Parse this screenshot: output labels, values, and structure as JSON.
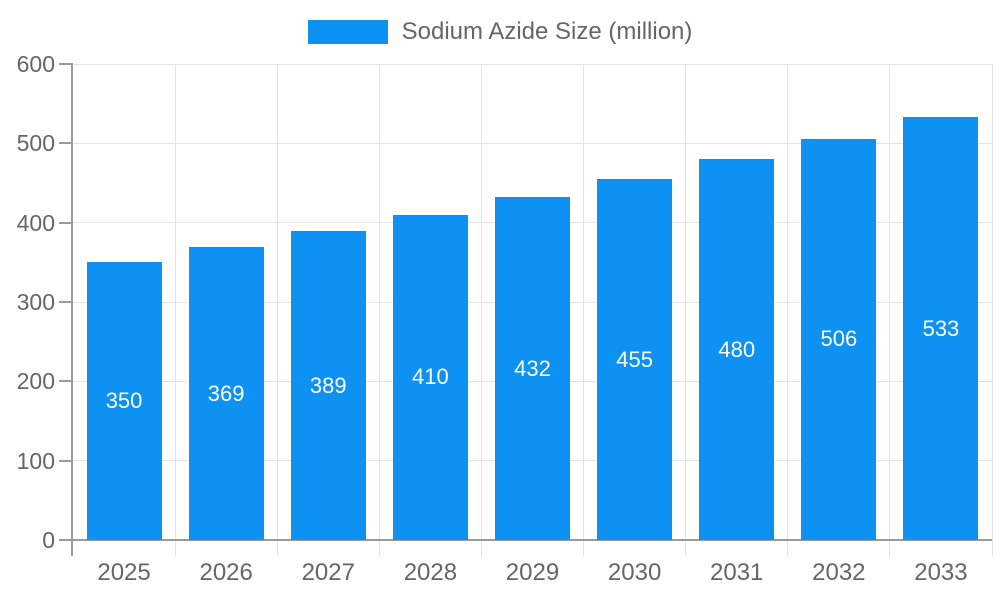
{
  "chart_data": {
    "type": "bar",
    "title": "Sodium Azide Size (million)",
    "categories": [
      "2025",
      "2026",
      "2027",
      "2028",
      "2029",
      "2030",
      "2031",
      "2032",
      "2033"
    ],
    "values": [
      350,
      369,
      389,
      410,
      432,
      455,
      480,
      506,
      533
    ],
    "xlabel": "",
    "ylabel": "",
    "ylim": [
      0,
      600
    ],
    "ytick_step": 100,
    "ytick_labels": [
      "0",
      "100",
      "200",
      "300",
      "400",
      "500",
      "600"
    ],
    "grid": true,
    "legend_position": "top-center",
    "bar_labels_shown": true,
    "bar_label_position": "center"
  },
  "legend": {
    "label": "Sodium Azide Size (million)"
  },
  "colors": {
    "bar": "#0D91F3",
    "axis": "#9A9A9A",
    "grid": "#E3E3E3",
    "tick_label": "#666666",
    "value_label": "#FFFFFF",
    "background": "#FFFFFF"
  }
}
